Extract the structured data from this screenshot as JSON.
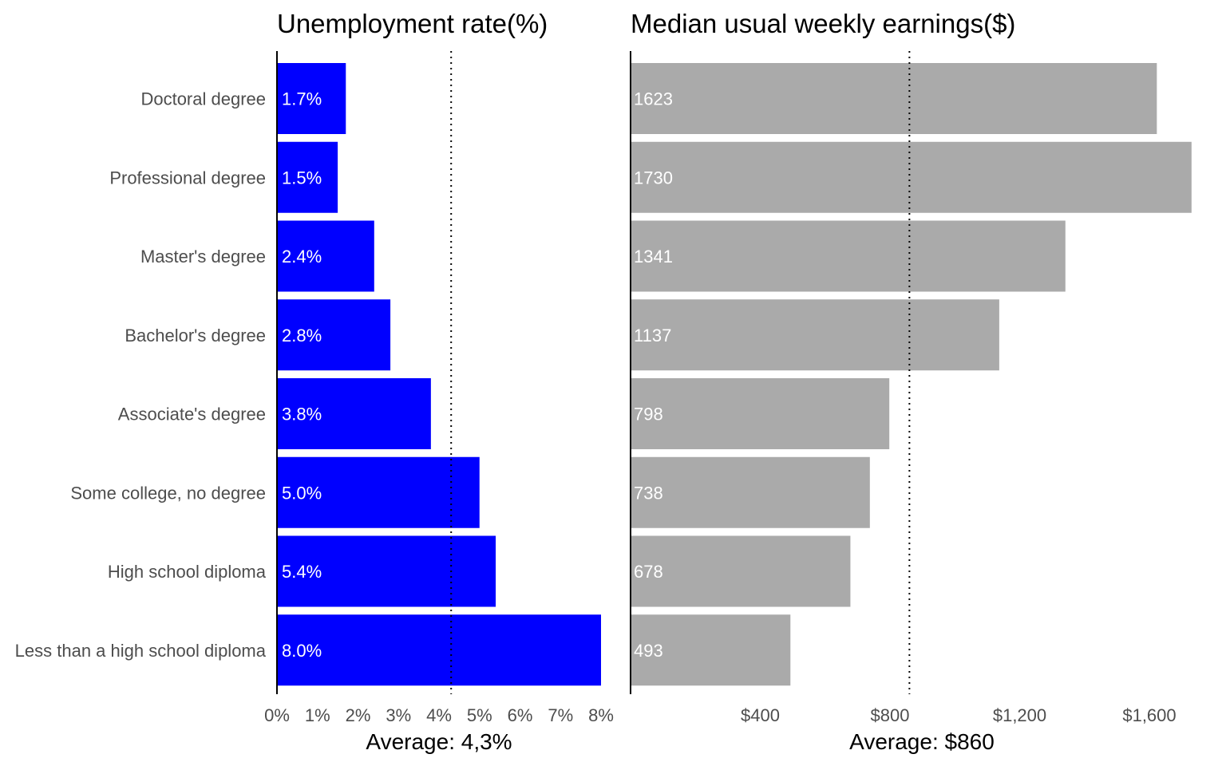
{
  "chart_data": [
    {
      "type": "bar",
      "orientation": "horizontal",
      "title": "Unemployment rate(%)",
      "categories": [
        "Doctoral degree",
        "Professional degree",
        "Master's degree",
        "Bachelor's degree",
        "Associate's degree",
        "Some college, no degree",
        "High school diploma",
        "Less than a high school diploma"
      ],
      "values": [
        1.7,
        1.5,
        2.4,
        2.8,
        3.8,
        5.0,
        5.4,
        8.0
      ],
      "value_labels": [
        "1.7%",
        "1.5%",
        "2.4%",
        "2.8%",
        "3.8%",
        "5.0%",
        "5.4%",
        "8.0%"
      ],
      "xlim": [
        0,
        8
      ],
      "ticks": [
        0,
        1,
        2,
        3,
        4,
        5,
        6,
        7,
        8
      ],
      "tick_labels": [
        "0%",
        "1%",
        "2%",
        "3%",
        "4%",
        "5%",
        "6%",
        "7%",
        "8%"
      ],
      "average": 4.3,
      "xlabel": "Average: 4,3%",
      "bar_color": "#0000ff",
      "grid": false
    },
    {
      "type": "bar",
      "orientation": "horizontal",
      "title": "Median usual weekly earnings($)",
      "categories": [
        "Doctoral degree",
        "Professional degree",
        "Master's degree",
        "Bachelor's degree",
        "Associate's degree",
        "Some college, no degree",
        "High school diploma",
        "Less than a high school diploma"
      ],
      "values": [
        1623,
        1730,
        1341,
        1137,
        798,
        738,
        678,
        493
      ],
      "value_labels": [
        "1623",
        "1730",
        "1341",
        "1137",
        "798",
        "738",
        "678",
        "493"
      ],
      "xlim": [
        0,
        1730
      ],
      "ticks": [
        400,
        800,
        1200,
        1600
      ],
      "tick_labels": [
        "$400",
        "$800",
        "$1,200",
        "$1,600"
      ],
      "average": 860,
      "xlabel": "Average: $860",
      "bar_color": "#aaaaaa",
      "grid": false
    }
  ]
}
